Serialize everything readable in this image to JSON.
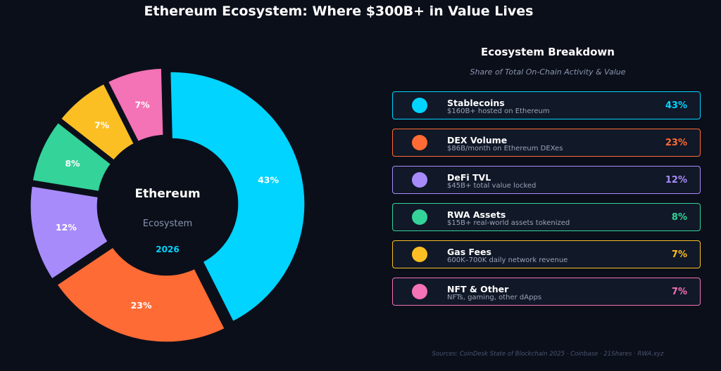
{
  "title": "Ethereum Ecosystem: Where $300B+ in Value Lives",
  "chart_data": {
    "type": "pie",
    "center": {
      "title": "Ethereum",
      "subtitle": "Ecosystem",
      "year": "2026"
    },
    "slices": [
      {
        "name": "Stablecoins",
        "value": 43,
        "label": "43%",
        "color": "#00d4ff"
      },
      {
        "name": "DEX Volume",
        "value": 23,
        "label": "23%",
        "color": "#ff6b35"
      },
      {
        "name": "DeFi TVL",
        "value": 12,
        "label": "12%",
        "color": "#a78bfa"
      },
      {
        "name": "RWA Assets",
        "value": 8,
        "label": "8%",
        "color": "#34d399"
      },
      {
        "name": "Gas Fees",
        "value": 7,
        "label": "7%",
        "color": "#fbbf24"
      },
      {
        "name": "NFT & Other",
        "value": 7,
        "label": "7%",
        "color": "#f472b6"
      }
    ]
  },
  "panel": {
    "title": "Ecosystem Breakdown",
    "subtitle": "Share of Total On-Chain Activity & Value",
    "items": [
      {
        "name": "Stablecoins",
        "desc": "$160B+ hosted on Ethereum",
        "pct": "43%",
        "color": "#00d4ff"
      },
      {
        "name": "DEX Volume",
        "desc": "$86B/month on Ethereum DEXes",
        "pct": "23%",
        "color": "#ff6b35"
      },
      {
        "name": "DeFi TVL",
        "desc": "$45B+ total value locked",
        "pct": "12%",
        "color": "#a78bfa"
      },
      {
        "name": "RWA Assets",
        "desc": "$15B+ real-world assets tokenized",
        "pct": "8%",
        "color": "#34d399"
      },
      {
        "name": "Gas Fees",
        "desc": "600K–700K daily network revenue",
        "pct": "7%",
        "color": "#fbbf24"
      },
      {
        "name": "NFT & Other",
        "desc": "NFTs, gaming, other dApps",
        "pct": "7%",
        "color": "#f472b6"
      }
    ]
  },
  "sources": "Sources: CoinDesk State of Blockchain 2025 · Coinbase · 21Shares · RWA.xyz"
}
